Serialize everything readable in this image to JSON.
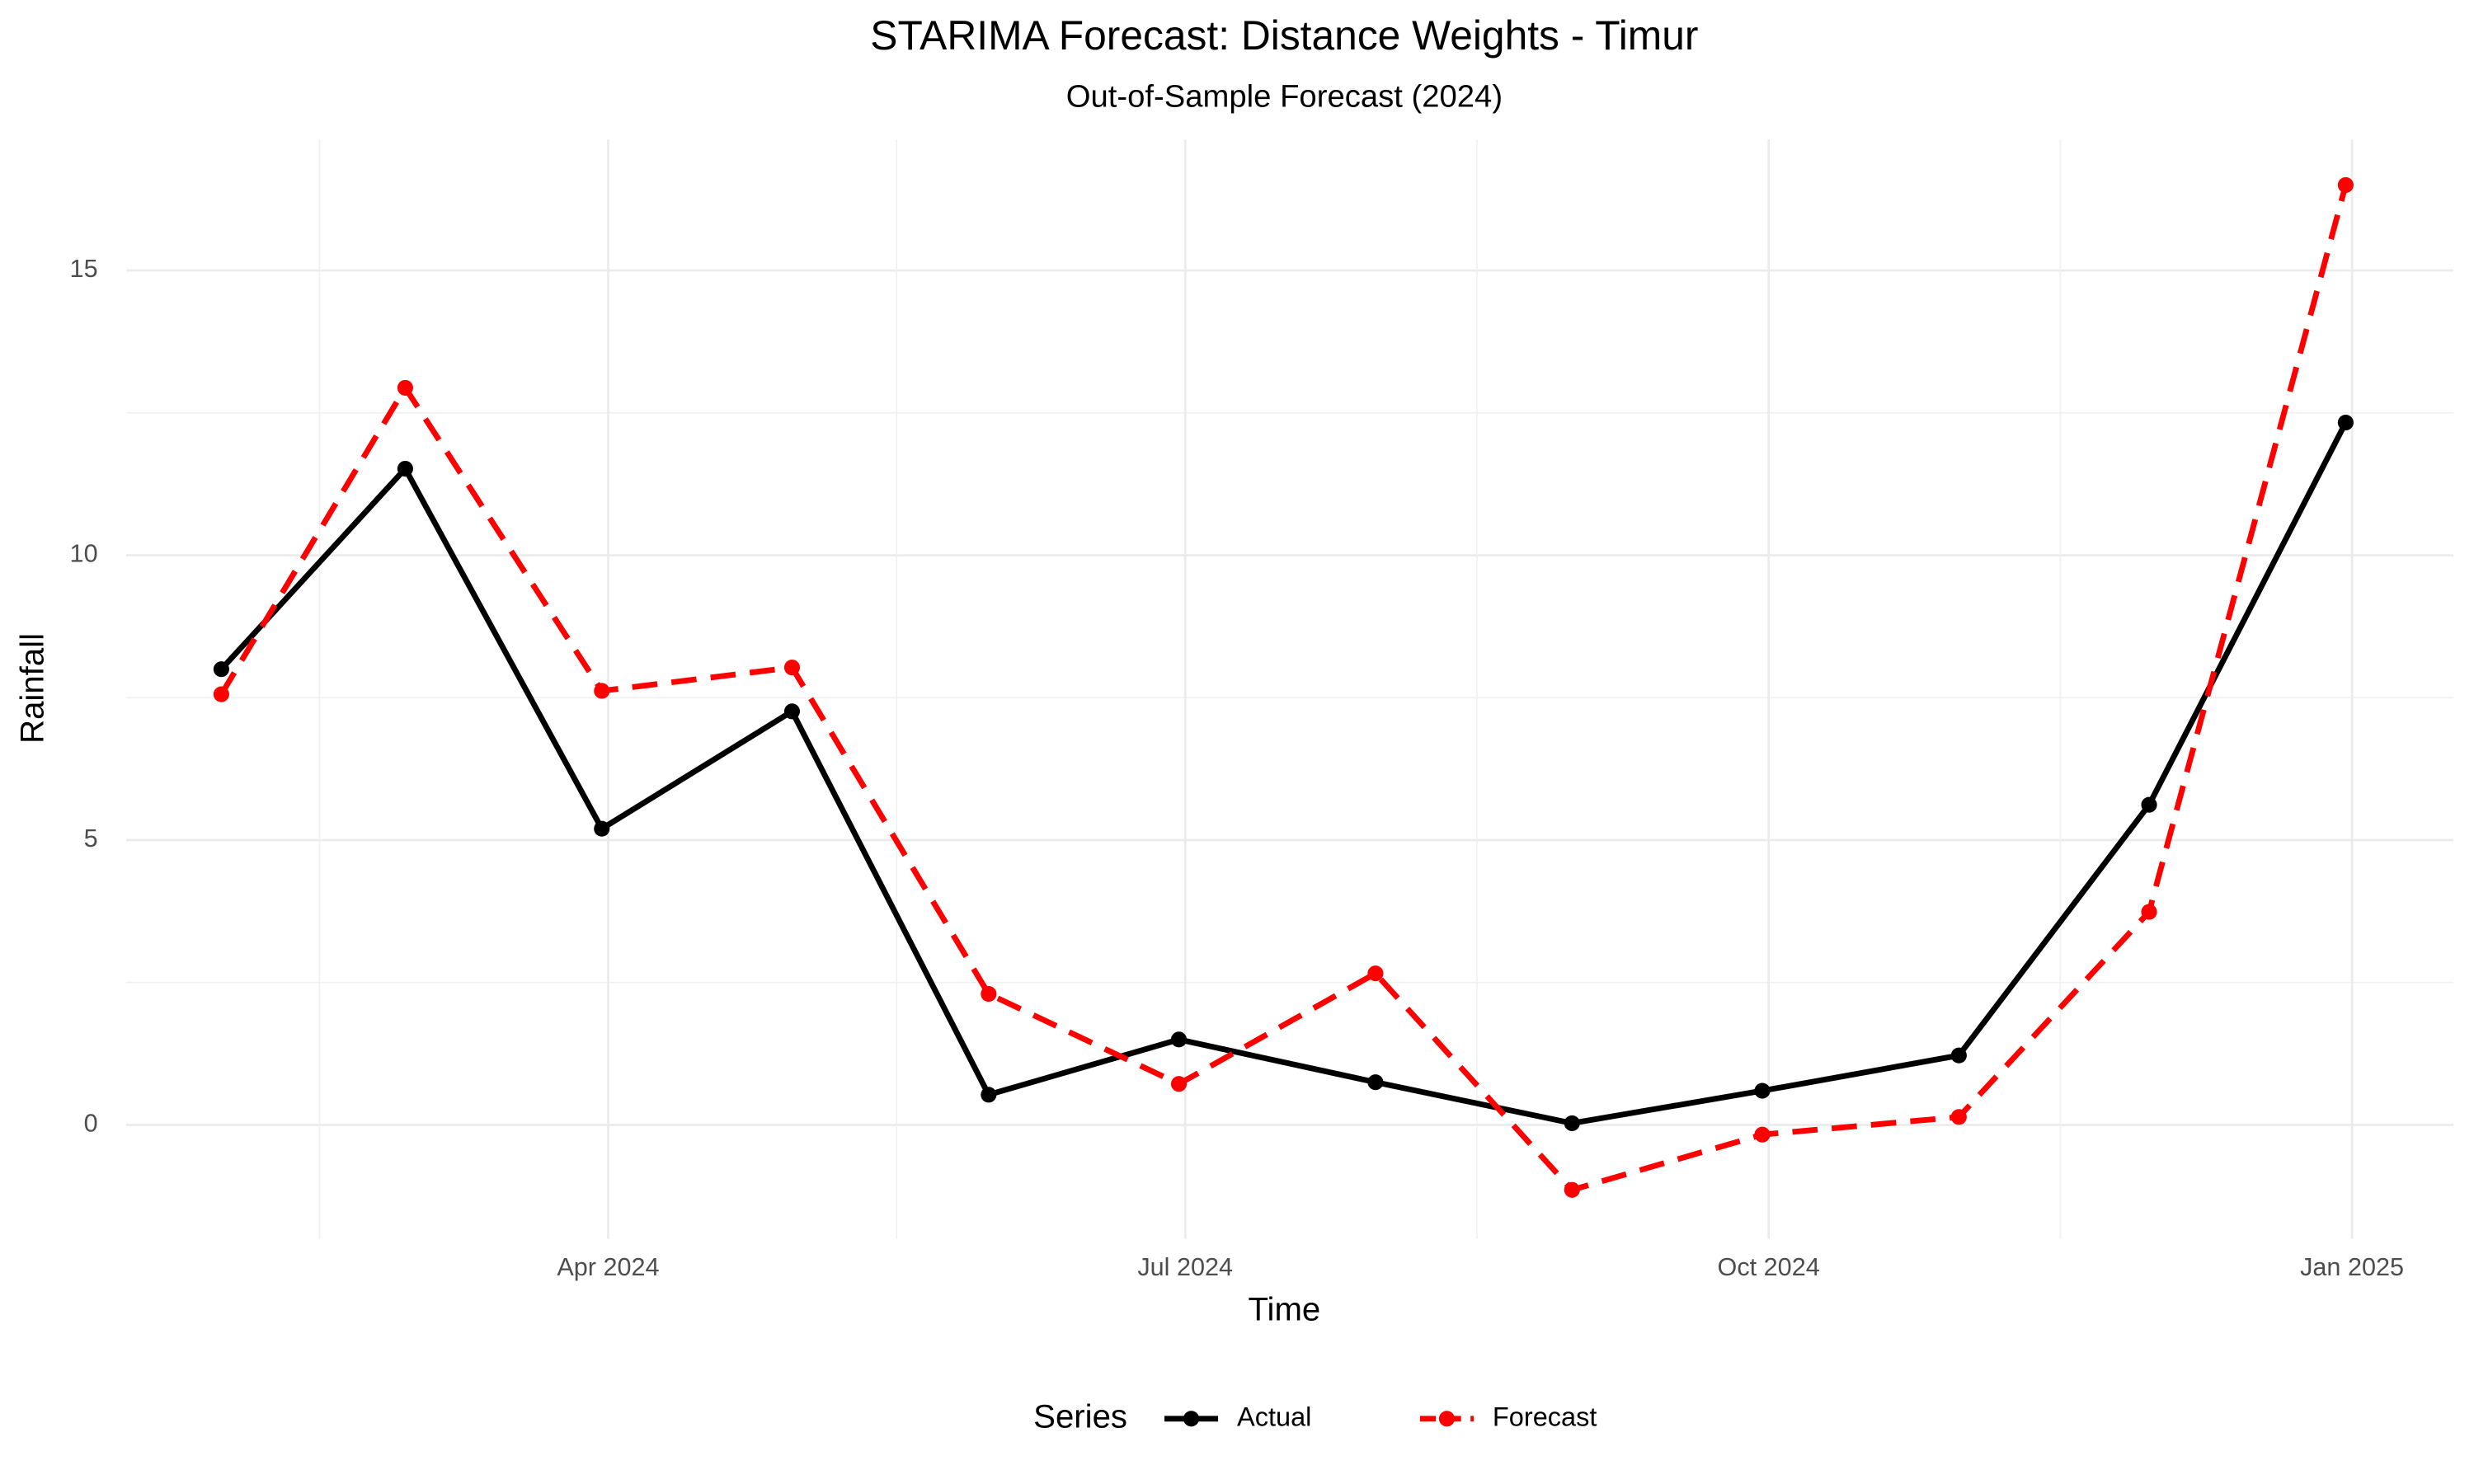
{
  "chart_data": {
    "type": "line",
    "title": "STARIMA Forecast: Distance Weights - Timur",
    "subtitle": "Out-of-Sample Forecast (2024)",
    "x_label": "Time",
    "y_label": "Rainfall",
    "legend_title": "Series",
    "x": [
      "2024-01",
      "2024-02",
      "2024-03",
      "2024-04",
      "2024-05",
      "2024-06",
      "2024-07",
      "2024-08",
      "2024-09",
      "2024-10",
      "2024-11",
      "2024-12"
    ],
    "series": [
      {
        "name": "Actual",
        "color": "#000000",
        "dash": false,
        "values": [
          8.0,
          11.52,
          5.2,
          7.26,
          0.53,
          1.5,
          0.75,
          0.03,
          0.6,
          1.22,
          5.62,
          12.33
        ]
      },
      {
        "name": "Forecast",
        "color": "#ff0000",
        "dash": true,
        "values": [
          7.56,
          12.94,
          7.62,
          8.03,
          2.3,
          0.72,
          2.66,
          -1.14,
          -0.17,
          0.14,
          3.74,
          16.5
        ]
      }
    ],
    "xlim": [
      "2024-01-16",
      "2025-01-17"
    ],
    "xticks": [
      {
        "value": "2024-04",
        "label": "Apr 2024"
      },
      {
        "value": "2024-07",
        "label": "Jul 2024"
      },
      {
        "value": "2024-10",
        "label": "Oct 2024"
      },
      {
        "value": "2025-01",
        "label": "Jan 2025"
      }
    ],
    "ylim": [
      -2,
      17.3
    ],
    "yticks": [
      0,
      5,
      10,
      15
    ],
    "grid": true,
    "legend_position": "bottom"
  }
}
